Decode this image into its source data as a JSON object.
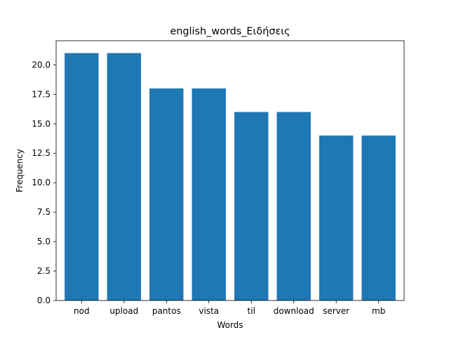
{
  "chart_data": {
    "type": "bar",
    "title": "english_words_Ειδήσεις",
    "xlabel": "Words",
    "ylabel": "Frequency",
    "categories": [
      "nod",
      "upload",
      "pantos",
      "vista",
      "til",
      "download",
      "server",
      "mb"
    ],
    "values": [
      21,
      21,
      18,
      18,
      16,
      16,
      14,
      14
    ],
    "ylim": [
      0,
      22.05
    ],
    "yticks": [
      "0.0",
      "2.5",
      "5.0",
      "7.5",
      "10.0",
      "12.5",
      "15.0",
      "17.5",
      "20.0"
    ],
    "bar_color": "#1f77b4",
    "grid": false,
    "legend": "none"
  }
}
